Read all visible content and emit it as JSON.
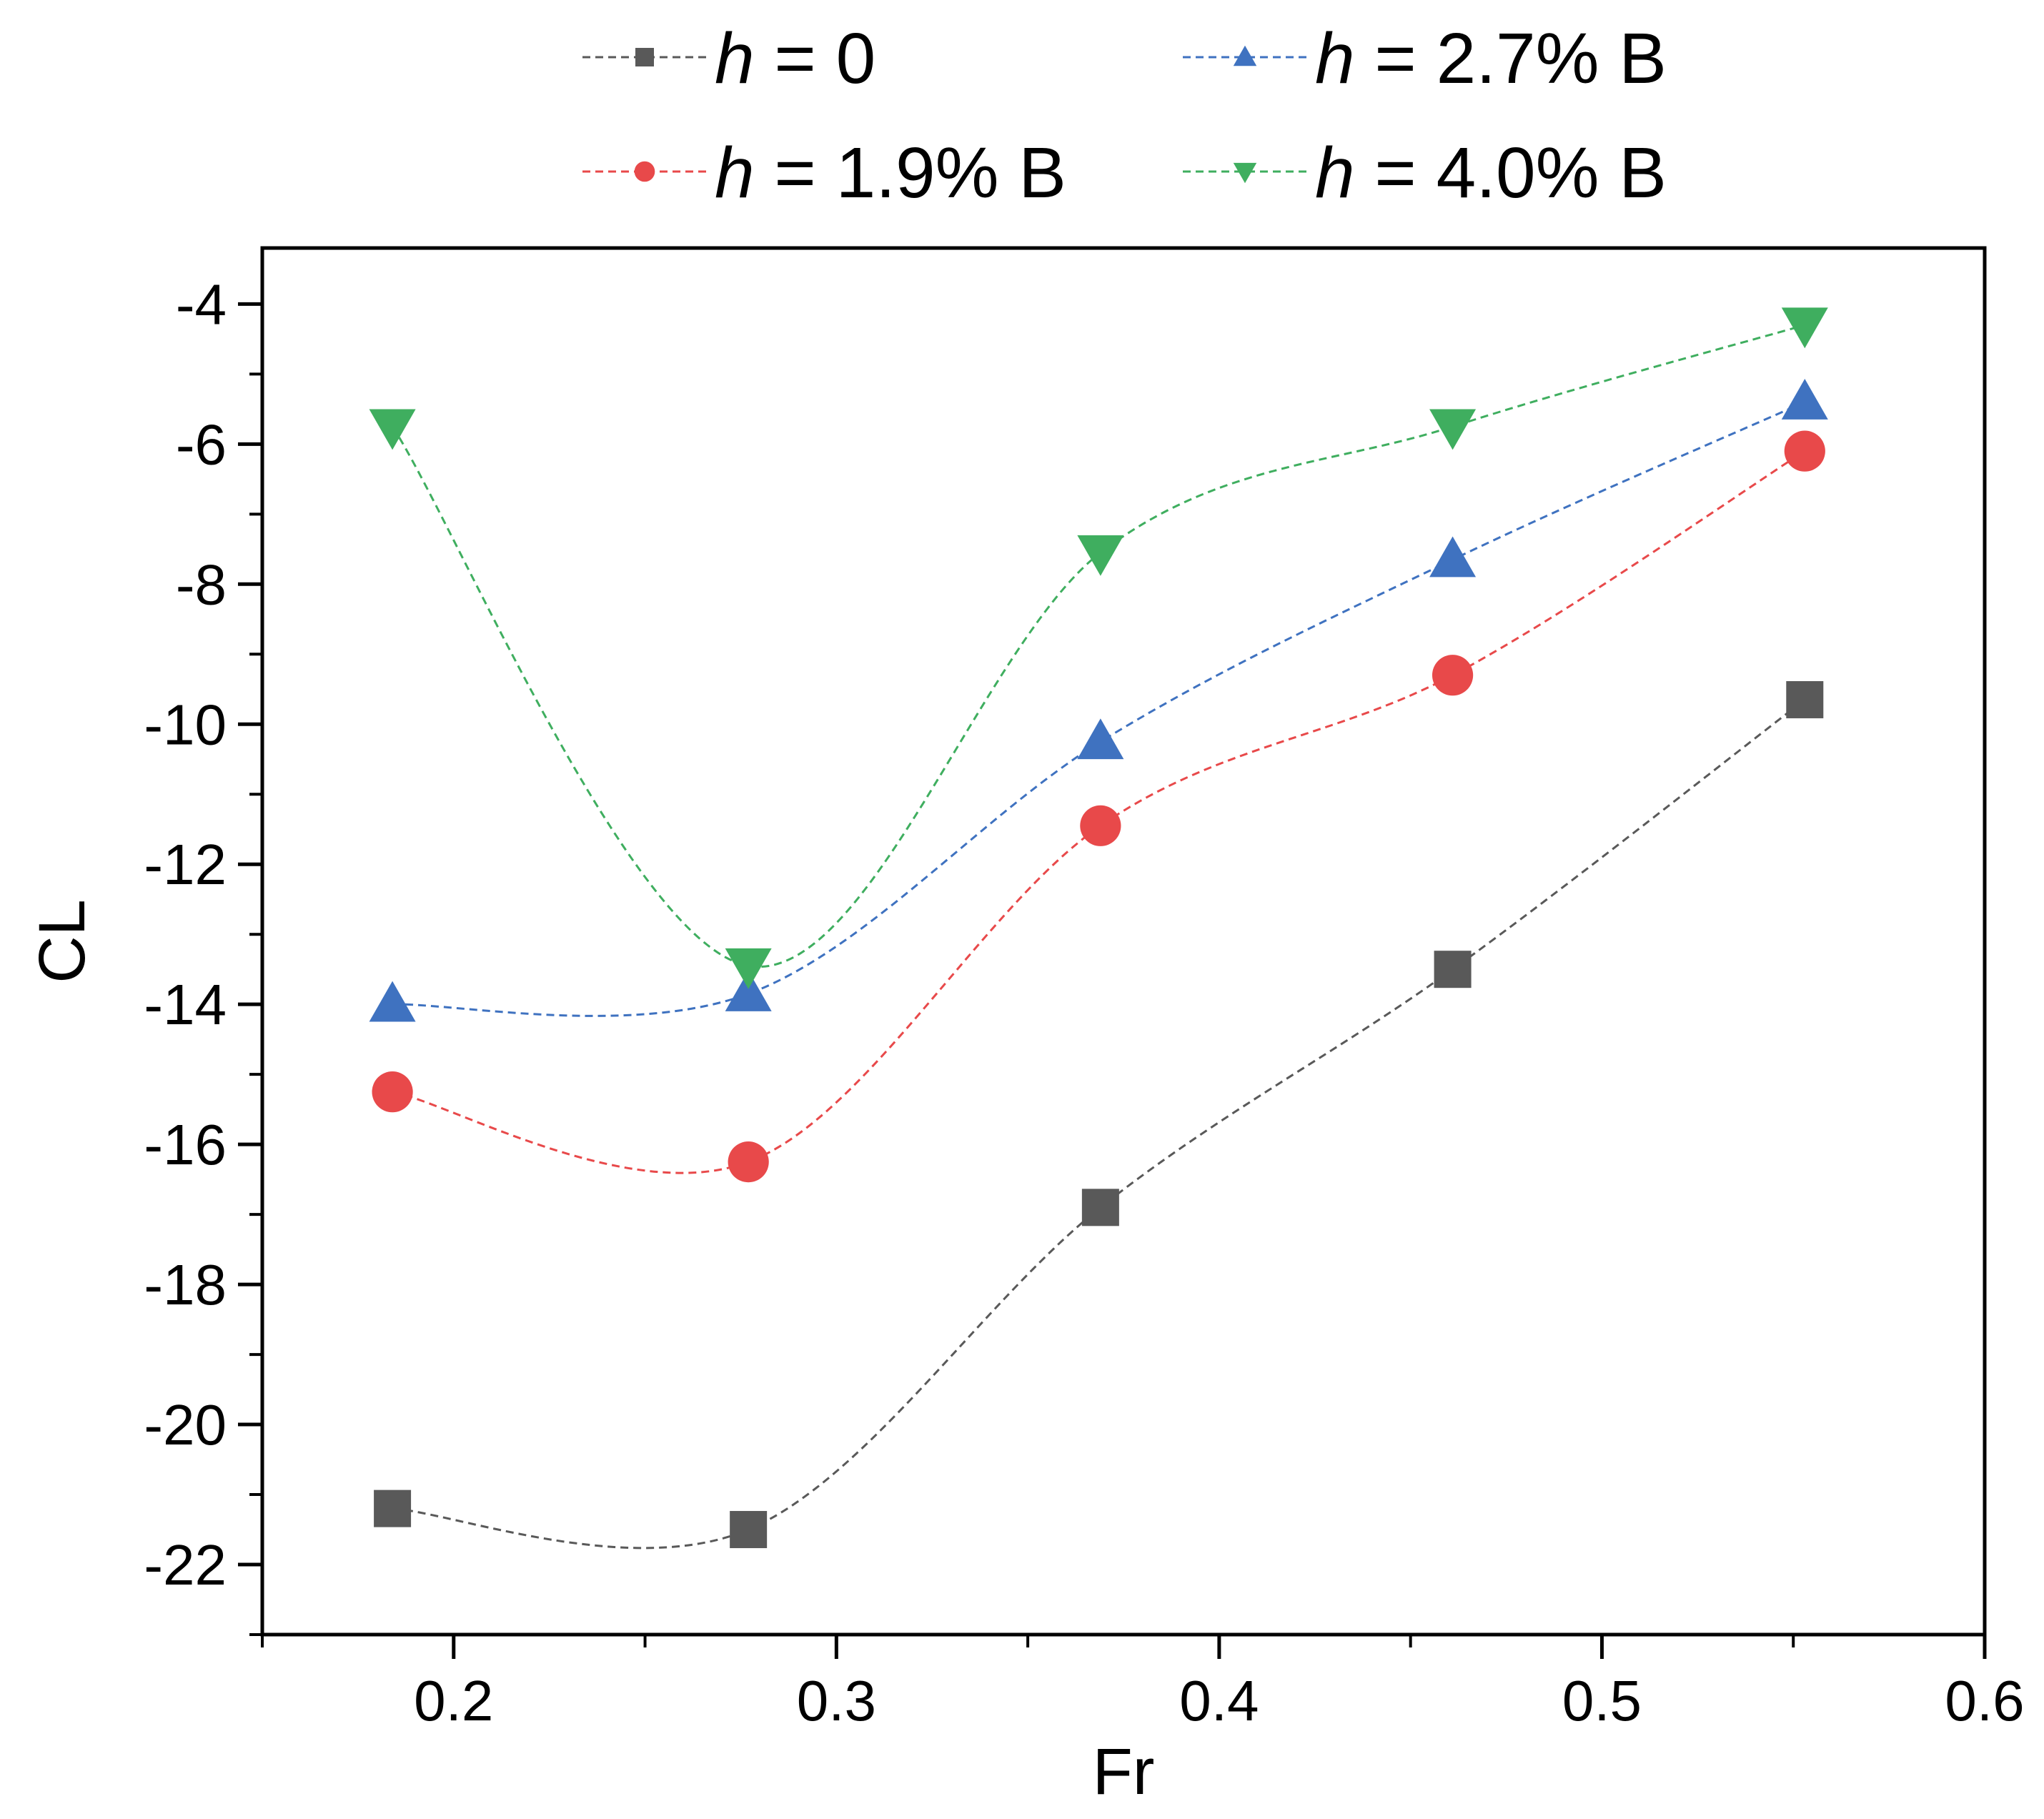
{
  "chart_data": {
    "type": "line",
    "xlabel": "Fr",
    "ylabel": "CL",
    "xlim": [
      0.15,
      0.6
    ],
    "ylim": [
      -23,
      -3.2
    ],
    "xticks": [
      "0.2",
      "0.3",
      "0.4",
      "0.5",
      "0.6"
    ],
    "yticks": [
      "-4",
      "-6",
      "-8",
      "-10",
      "-12",
      "-14",
      "-16",
      "-18",
      "-20",
      "-22"
    ],
    "x": [
      0.184,
      0.277,
      0.369,
      0.461,
      0.553
    ],
    "grid": false,
    "legend_position": "top",
    "series": [
      {
        "var": "h",
        "rest": " = 0",
        "color": "#595959",
        "marker": "square",
        "values": [
          -21.2,
          -21.5,
          -16.9,
          -13.5,
          -9.65
        ]
      },
      {
        "var": "h",
        "rest": " = 1.9% B",
        "color": "#e8494a",
        "marker": "circle",
        "values": [
          -15.25,
          -16.25,
          -11.45,
          -9.3,
          -6.1
        ]
      },
      {
        "var": "h",
        "rest": " = 2.7% B",
        "color": "#3f72c0",
        "marker": "triangle-up",
        "values": [
          -14.0,
          -13.85,
          -10.25,
          -7.65,
          -5.4
        ]
      },
      {
        "var": "h",
        "rest": " = 4.0% B",
        "color": "#3fae5f",
        "marker": "triangle-down",
        "values": [
          -5.75,
          -13.45,
          -7.55,
          -5.75,
          -4.3
        ]
      }
    ]
  }
}
